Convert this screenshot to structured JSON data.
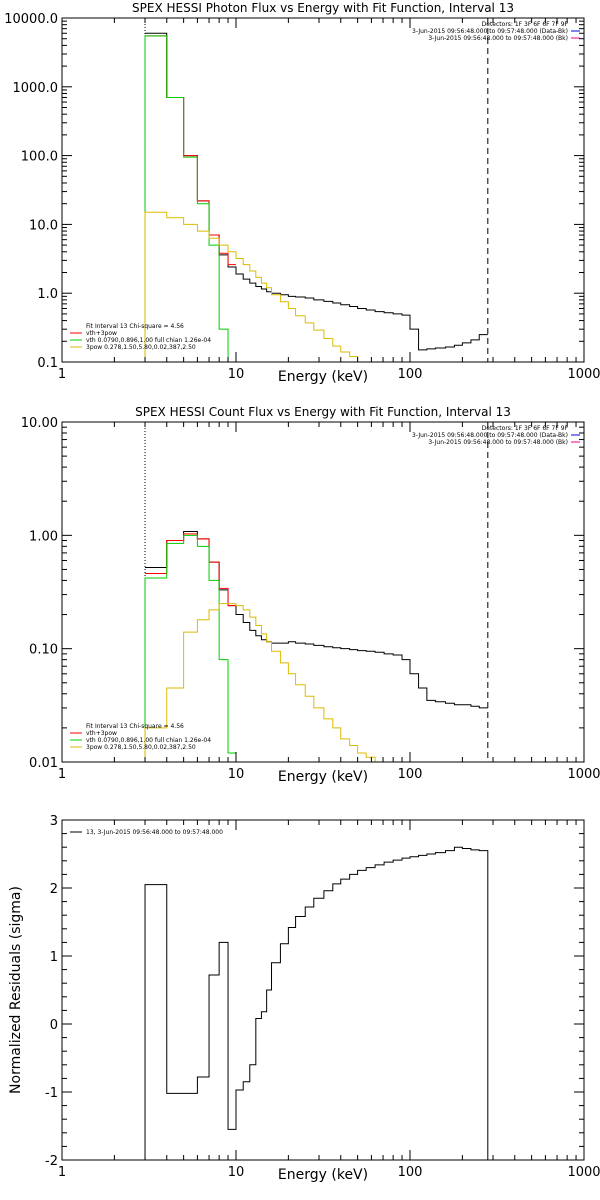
{
  "colors": {
    "black": "#000000",
    "red": "#ff0000",
    "green": "#00cc00",
    "yellow": "#ddbb00",
    "magenta": "#ee0088",
    "blue": "#0000ee"
  },
  "chart_data": [
    {
      "type": "line",
      "title": "SPEX HESSI Photon Flux vs Energy with Fit Function, Interval 13",
      "xlabel": "Energy (keV)",
      "ylabel": "",
      "xscale": "log",
      "yscale": "log",
      "xlim": [
        1,
        1000
      ],
      "ylim": [
        0.1,
        10000
      ],
      "xticks": [
        1,
        10,
        100,
        1000
      ],
      "xtick_labels": [
        "1",
        "10",
        "100",
        "1000"
      ],
      "yticks": [
        0.1,
        1,
        10,
        100,
        1000,
        10000
      ],
      "ytick_labels": [
        "0.1",
        "1.0",
        "10.0",
        "100.0",
        "1000.0",
        "10000.0"
      ],
      "vlines": [
        {
          "x": 3,
          "style": "dotted"
        },
        {
          "x": 280,
          "style": "dashed"
        }
      ],
      "info": [
        "Detectors: 1F 3F 6F 6F 7F 9F",
        "3-Jun-2015 09:56:48.000 to 09:57:48.000 (Data-Bk)",
        "3-Jun-2015 09:56:48.000 to 09:57:48.000 (Bk)"
      ],
      "info_colors": [
        "#000000",
        "#0000ee",
        "#ee0088"
      ],
      "legend": [
        "Fit Interval 13   Chi-square = 4.56",
        "vth+3pow",
        "vth 0.0790,0.896,1.00   full chian 1.26e-04",
        "3pow 0.278,1.50,5.80,0.02,387,2.50"
      ],
      "legend_colors": [
        "#000000",
        "#ff0000",
        "#00cc00",
        "#ddbb00"
      ],
      "series": [
        {
          "name": "Data",
          "color": "#000000",
          "edges": [
            3,
            4,
            5,
            6,
            7,
            8,
            9,
            10,
            11,
            12,
            13,
            14,
            15,
            16,
            18,
            20,
            22,
            25,
            28,
            32,
            36,
            40,
            45,
            50,
            56,
            63,
            71,
            80,
            90,
            100,
            112,
            125,
            140,
            160,
            180,
            200,
            224,
            250,
            280
          ],
          "values": [
            6000,
            700,
            100,
            22,
            7,
            3.6,
            2.4,
            1.9,
            1.6,
            1.4,
            1.25,
            1.15,
            1.05,
            1.0,
            0.95,
            0.9,
            0.88,
            0.85,
            0.8,
            0.76,
            0.72,
            0.68,
            0.64,
            0.6,
            0.57,
            0.54,
            0.52,
            0.5,
            0.48,
            0.3,
            0.15,
            0.155,
            0.16,
            0.165,
            0.175,
            0.19,
            0.21,
            0.25
          ]
        },
        {
          "name": "vth+3pow",
          "color": "#ff0000",
          "edges": [
            3,
            4,
            5,
            6,
            7,
            8,
            9,
            10
          ],
          "values": [
            5500,
            700,
            100,
            22,
            7,
            3.8,
            2.6
          ]
        },
        {
          "name": "vth",
          "color": "#00cc00",
          "edges": [
            3,
            4,
            5,
            6,
            7,
            8,
            9
          ],
          "values": [
            5500,
            700,
            95,
            20,
            5,
            0.3
          ],
          "start_from_bottom": true,
          "end_to_bottom": true
        },
        {
          "name": "3pow",
          "color": "#ddbb00",
          "edges": [
            3,
            4,
            5,
            6,
            7,
            8,
            9,
            10,
            11,
            12,
            13,
            14,
            15,
            16,
            18,
            20,
            22,
            25,
            28,
            32,
            36,
            40,
            45,
            50,
            56
          ],
          "values": [
            15,
            12.5,
            10,
            8,
            6.3,
            5,
            4,
            3.2,
            2.6,
            2.1,
            1.7,
            1.4,
            1.2,
            0.95,
            0.75,
            0.6,
            0.47,
            0.37,
            0.29,
            0.22,
            0.17,
            0.14,
            0.12,
            0.1
          ],
          "start_from_bottom": true
        }
      ]
    },
    {
      "type": "line",
      "title": "SPEX HESSI Count Flux vs Energy with Fit Function, Interval 13",
      "xlabel": "Energy (keV)",
      "ylabel": "",
      "xscale": "log",
      "yscale": "log",
      "xlim": [
        1,
        1000
      ],
      "ylim": [
        0.01,
        10
      ],
      "xticks": [
        1,
        10,
        100,
        1000
      ],
      "xtick_labels": [
        "1",
        "10",
        "100",
        "1000"
      ],
      "yticks": [
        0.01,
        0.1,
        1,
        10
      ],
      "ytick_labels": [
        "0.01",
        "0.10",
        "1.00",
        "10.00"
      ],
      "vlines": [
        {
          "x": 3,
          "style": "dotted"
        },
        {
          "x": 280,
          "style": "dashed"
        }
      ],
      "info": [
        "Detectors: 1F 3F 6F 6F 7F 9F",
        "3-Jun-2015 09:56:48.000 to 09:57:48.000 (Data-Bk)",
        "3-Jun-2015 09:56:48.000 to 09:57:48.000 (Bk)"
      ],
      "info_colors": [
        "#000000",
        "#0000ee",
        "#ee0088"
      ],
      "legend": [
        "Fit Interval 13   Chi-square = 4.56",
        "vth+3pow",
        "vth 0.0790,0.896,1.00   full chian 1.26e-04",
        "3pow 0.278,1.50,5.80,0.02,387,2.50"
      ],
      "legend_colors": [
        "#000000",
        "#ff0000",
        "#00cc00",
        "#ddbb00"
      ],
      "series": [
        {
          "name": "Data",
          "color": "#000000",
          "edges": [
            3,
            4,
            5,
            6,
            7,
            8,
            9,
            10,
            11,
            12,
            13,
            14,
            15,
            16,
            18,
            20,
            22,
            25,
            28,
            32,
            36,
            40,
            45,
            50,
            56,
            63,
            71,
            80,
            90,
            100,
            112,
            125,
            140,
            160,
            180,
            200,
            224,
            250,
            280
          ],
          "values": [
            0.52,
            0.9,
            1.08,
            0.93,
            0.58,
            0.33,
            0.24,
            0.2,
            0.17,
            0.145,
            0.13,
            0.12,
            0.115,
            0.112,
            0.112,
            0.115,
            0.112,
            0.11,
            0.107,
            0.104,
            0.102,
            0.1,
            0.098,
            0.096,
            0.095,
            0.093,
            0.09,
            0.088,
            0.08,
            0.06,
            0.045,
            0.035,
            0.034,
            0.033,
            0.032,
            0.032,
            0.031,
            0.03
          ]
        },
        {
          "name": "vth+3pow",
          "color": "#ff0000",
          "edges": [
            3,
            4,
            5,
            6,
            7,
            8,
            9,
            10
          ],
          "values": [
            0.46,
            0.9,
            1.03,
            0.93,
            0.58,
            0.34,
            0.24
          ]
        },
        {
          "name": "vth",
          "color": "#00cc00",
          "edges": [
            3,
            4,
            5,
            6,
            7,
            8,
            9,
            10
          ],
          "values": [
            0.42,
            0.85,
            1.0,
            0.8,
            0.4,
            0.08,
            0.012
          ],
          "start_from_bottom": true,
          "end_to_bottom": true
        },
        {
          "name": "3pow",
          "color": "#ddbb00",
          "edges": [
            3,
            4,
            5,
            6,
            7,
            8,
            9,
            10,
            11,
            12,
            13,
            14,
            15,
            16,
            18,
            20,
            22,
            25,
            28,
            32,
            36,
            40,
            45,
            50,
            56,
            63
          ],
          "values": [
            0.02,
            0.045,
            0.14,
            0.18,
            0.22,
            0.25,
            0.25,
            0.24,
            0.22,
            0.19,
            0.16,
            0.135,
            0.115,
            0.095,
            0.075,
            0.06,
            0.048,
            0.038,
            0.03,
            0.024,
            0.02,
            0.016,
            0.014,
            0.012,
            0.011
          ],
          "start_from_bottom": true,
          "end_to_bottom": true
        }
      ]
    },
    {
      "type": "line",
      "title": "",
      "xlabel": "Energy (keV)",
      "ylabel": "Normalized Residuals (sigma)",
      "xscale": "log",
      "yscale": "linear",
      "xlim": [
        1,
        1000
      ],
      "ylim": [
        -2,
        3
      ],
      "xticks": [
        1,
        10,
        100,
        1000
      ],
      "xtick_labels": [
        "1",
        "10",
        "100",
        "1000"
      ],
      "yticks": [
        -2,
        -1,
        0,
        1,
        2,
        3
      ],
      "ytick_labels": [
        "-2",
        "-1",
        "0",
        "1",
        "2",
        "3"
      ],
      "vlines": [],
      "legend": [
        "13,  3-Jun-2015 09:56:48.000 to 09:57:48.000"
      ],
      "legend_colors": [
        "#000000"
      ],
      "series": [
        {
          "name": "13,  3-Jun-2015 09:56:48.000 to 09:57:48.000",
          "color": "#000000",
          "edges": [
            3,
            4,
            5,
            6,
            7,
            8,
            9,
            10,
            11,
            12,
            13,
            14,
            15,
            16,
            18,
            20,
            22,
            25,
            28,
            32,
            36,
            40,
            45,
            50,
            56,
            63,
            71,
            80,
            90,
            100,
            112,
            125,
            140,
            160,
            180,
            200,
            224,
            250,
            280
          ],
          "values": [
            2.05,
            -1.02,
            -1.02,
            -0.78,
            0.72,
            1.2,
            -1.55,
            -0.97,
            -0.85,
            -0.6,
            0.08,
            0.18,
            0.5,
            0.9,
            1.18,
            1.42,
            1.58,
            1.72,
            1.85,
            1.96,
            2.06,
            2.13,
            2.2,
            2.26,
            2.3,
            2.34,
            2.38,
            2.41,
            2.44,
            2.46,
            2.48,
            2.5,
            2.52,
            2.55,
            2.6,
            2.58,
            2.56,
            2.55
          ],
          "start_from_bottom": true,
          "end_to_bottom": true
        }
      ]
    }
  ]
}
